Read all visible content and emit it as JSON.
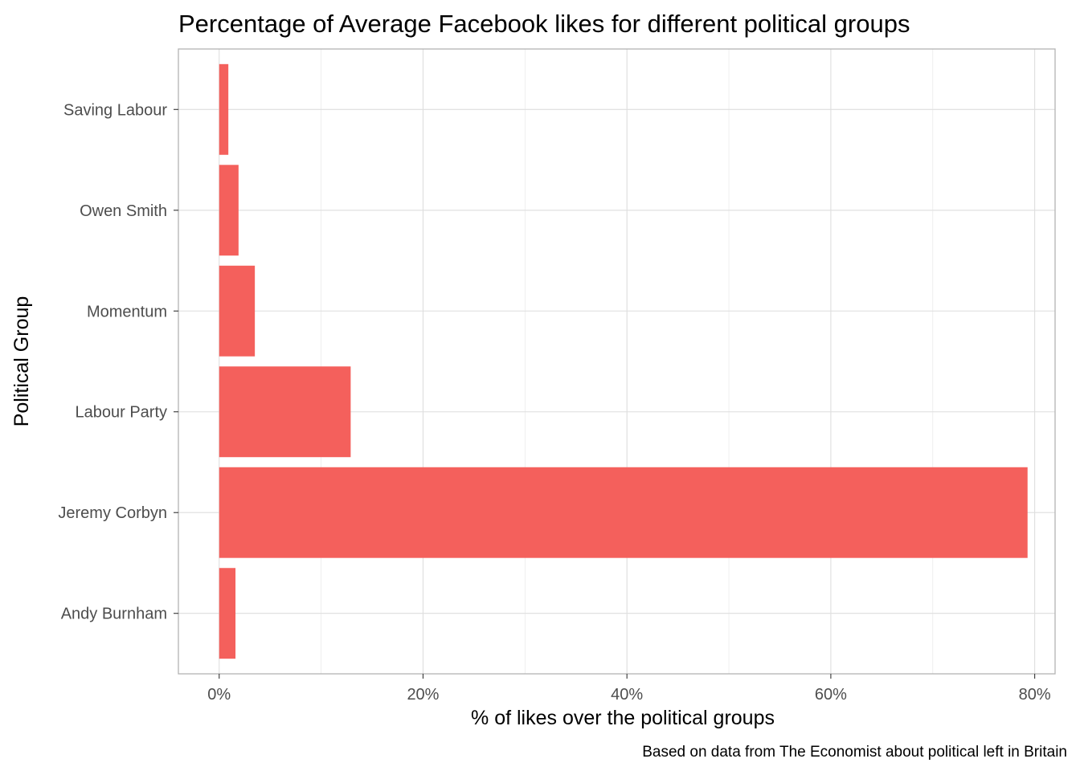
{
  "chart_data": {
    "type": "bar",
    "orientation": "horizontal",
    "title": "Percentage of Average Facebook likes for different political groups",
    "xlabel": "% of likes over the political groups",
    "ylabel": "Political Group",
    "caption": "Based on data from The Economist about political left in Britain",
    "categories": [
      "Andy Burnham",
      "Jeremy Corbyn",
      "Labour Party",
      "Momentum",
      "Owen Smith",
      "Saving Labour"
    ],
    "values": [
      1.6,
      79.3,
      12.9,
      3.5,
      1.9,
      0.9
    ],
    "value_unit": "%",
    "xlim": [
      -4,
      82
    ],
    "x_ticks": [
      0,
      20,
      40,
      60,
      80
    ],
    "x_tick_labels": [
      "0%",
      "20%",
      "40%",
      "60%",
      "80%"
    ],
    "bar_color": "#f4605c",
    "grid": true
  }
}
